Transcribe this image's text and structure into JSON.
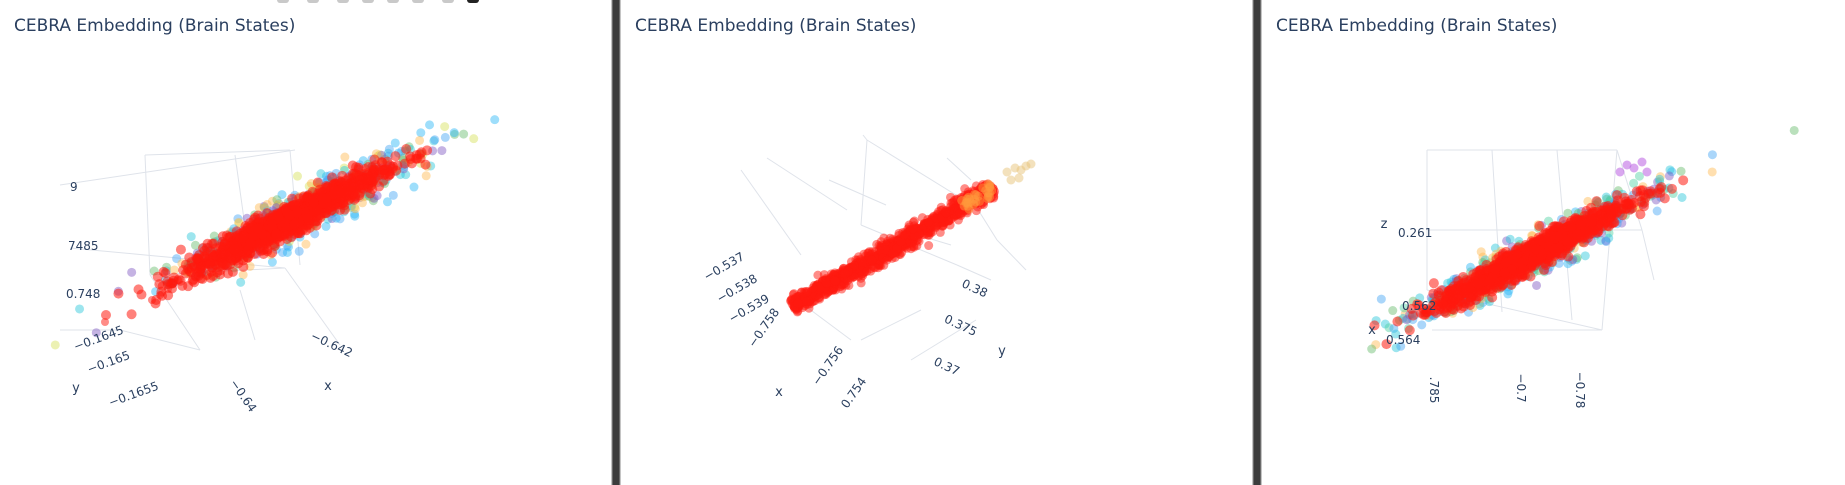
{
  "colors": {
    "title": "#2a3f5f",
    "tick": "#2a3f5f",
    "grid": "#dfe3ea",
    "point_main": "#ff1a0f"
  },
  "toolbar": {
    "icons": [
      "zoom-icon",
      "pan-icon",
      "orbit-icon",
      "turntable-icon",
      "camera-icon",
      "home-icon",
      "reset-icon",
      "plotly-logo-icon"
    ]
  },
  "chart_data": [
    {
      "type": "scatter3d",
      "title": "CEBRA Embedding (Brain States)",
      "axis_titles": {
        "x": "x",
        "y": "y"
      },
      "x_ticks": [
        "−0.642",
        "−0.64"
      ],
      "y_ticks": [
        "−0.1645",
        "−0.165",
        "−0.1655"
      ],
      "z_ticks": [
        "9",
        "7485",
        "0.748"
      ],
      "point_colors": [
        "red (majority)",
        "orange",
        "yellow-green",
        "cyan",
        "blue",
        "purple"
      ],
      "cloud": {
        "shape": "elongated ellipsoid",
        "dominant_color": "red"
      }
    },
    {
      "type": "scatter3d",
      "title": "CEBRA Embedding (Brain States)",
      "axis_titles": {
        "x": "x",
        "y": "y"
      },
      "x_ticks": [
        "−0.758",
        "−0.756",
        "0.754"
      ],
      "y_ticks": [
        "0.38",
        "0.375",
        "0.37"
      ],
      "z_ticks": [
        "−0.537",
        "−0.538",
        "−0.539"
      ],
      "point_colors": [
        "red (majority)",
        "orange",
        "wheat"
      ],
      "cloud": {
        "shape": "thin line",
        "dominant_color": "red"
      }
    },
    {
      "type": "scatter3d",
      "title": "CEBRA Embedding (Brain States)",
      "axis_titles": {
        "x": "x",
        "z": "z"
      },
      "x_ticks": [
        ".785",
        "−0.7",
        "−0.78"
      ],
      "y_ticks": [
        "0.562",
        "0.564"
      ],
      "z_ticks": [
        "0.261"
      ],
      "point_colors": [
        "red (majority)",
        "orange",
        "green",
        "cyan",
        "blue",
        "purple"
      ],
      "cloud": {
        "shape": "elongated ellipsoid",
        "dominant_color": "red"
      }
    }
  ]
}
